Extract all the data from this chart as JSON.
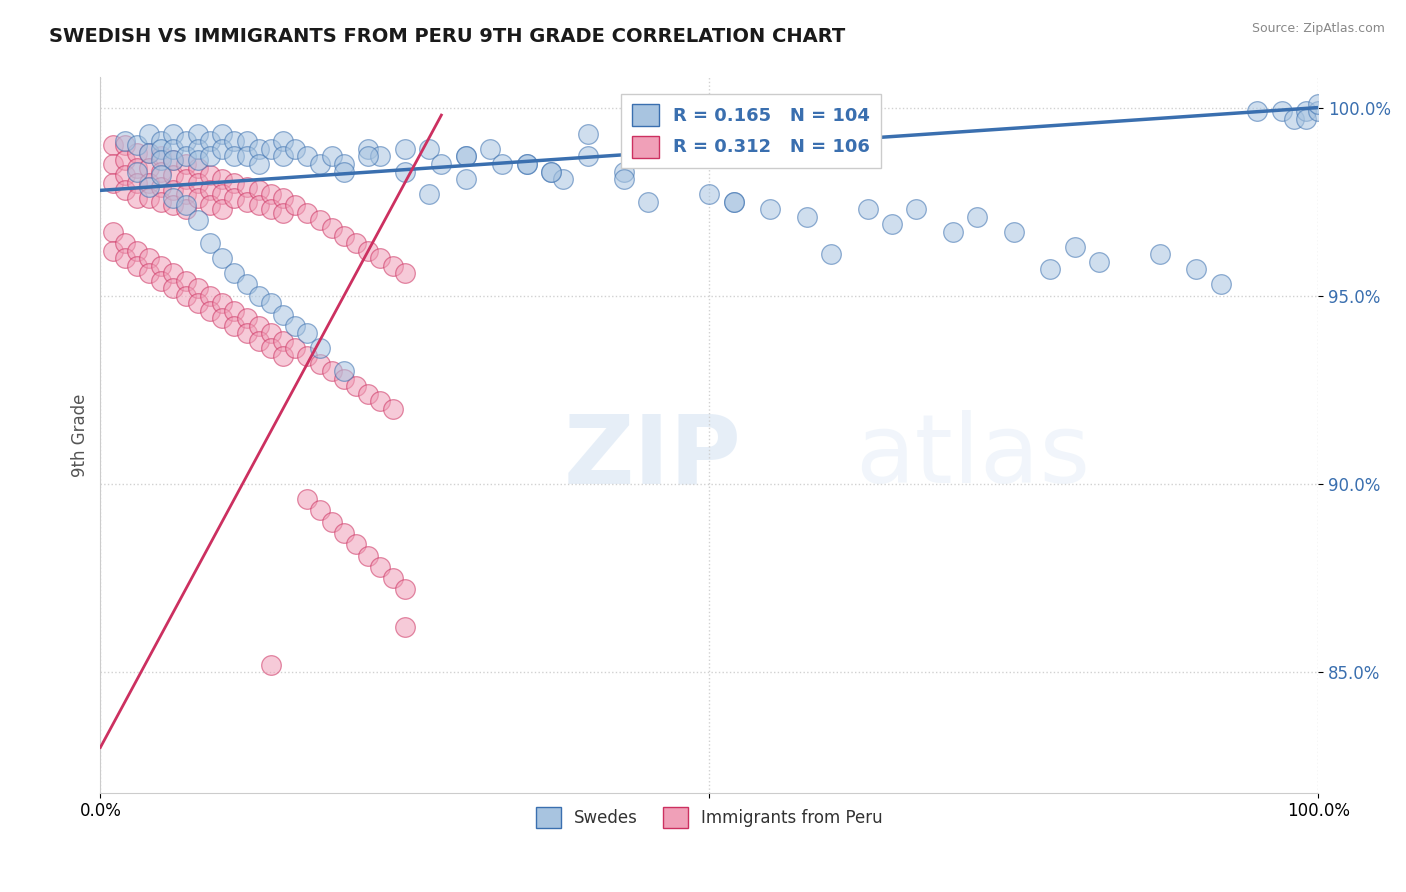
{
  "title": "SWEDISH VS IMMIGRANTS FROM PERU 9TH GRADE CORRELATION CHART",
  "source": "Source: ZipAtlas.com",
  "ylabel": "9th Grade",
  "xlim": [
    0.0,
    1.0
  ],
  "ylim": [
    0.818,
    1.008
  ],
  "yticks": [
    0.85,
    0.9,
    0.95,
    1.0
  ],
  "ytick_labels": [
    "85.0%",
    "90.0%",
    "95.0%",
    "100.0%"
  ],
  "swedes_R": 0.165,
  "swedes_N": 104,
  "peru_R": 0.312,
  "peru_N": 106,
  "swedes_color": "#a8c4e0",
  "peru_color": "#f0a0b8",
  "swedes_line_color": "#3a6faf",
  "peru_line_color": "#cc3060",
  "legend_text_color": "#3a6faf",
  "watermark_zip": "ZIP",
  "watermark_atlas": "atlas",
  "background_color": "#ffffff",
  "grid_color": "#cccccc",
  "swedes_x": [
    0.02,
    0.03,
    0.04,
    0.04,
    0.05,
    0.05,
    0.05,
    0.06,
    0.06,
    0.06,
    0.07,
    0.07,
    0.08,
    0.08,
    0.08,
    0.09,
    0.09,
    0.1,
    0.1,
    0.11,
    0.11,
    0.12,
    0.12,
    0.13,
    0.13,
    0.14,
    0.15,
    0.15,
    0.16,
    0.17,
    0.18,
    0.19,
    0.2,
    0.22,
    0.23,
    0.25,
    0.27,
    0.28,
    0.3,
    0.32,
    0.35,
    0.37,
    0.03,
    0.04,
    0.05,
    0.06,
    0.07,
    0.08,
    0.09,
    0.1,
    0.11,
    0.12,
    0.13,
    0.14,
    0.15,
    0.16,
    0.17,
    0.18,
    0.2,
    0.38,
    0.4,
    0.43,
    0.45,
    0.47,
    0.48,
    0.5,
    0.52,
    0.55,
    0.58,
    0.6,
    0.63,
    0.65,
    0.67,
    0.7,
    0.72,
    0.75,
    0.78,
    0.8,
    0.82,
    0.87,
    0.9,
    0.92,
    0.95,
    0.97,
    0.98,
    0.99,
    0.99,
    1.0,
    1.0,
    0.3,
    0.33,
    0.35,
    0.27,
    0.25,
    0.48,
    0.52,
    0.55,
    0.43,
    0.45,
    0.4,
    0.37,
    0.3,
    0.22,
    0.2
  ],
  "swedes_y": [
    0.991,
    0.99,
    0.993,
    0.988,
    0.991,
    0.989,
    0.986,
    0.993,
    0.989,
    0.986,
    0.991,
    0.987,
    0.993,
    0.989,
    0.986,
    0.991,
    0.987,
    0.993,
    0.989,
    0.991,
    0.987,
    0.991,
    0.987,
    0.989,
    0.985,
    0.989,
    0.991,
    0.987,
    0.989,
    0.987,
    0.985,
    0.987,
    0.985,
    0.989,
    0.987,
    0.983,
    0.989,
    0.985,
    0.987,
    0.989,
    0.985,
    0.983,
    0.983,
    0.979,
    0.982,
    0.976,
    0.974,
    0.97,
    0.964,
    0.96,
    0.956,
    0.953,
    0.95,
    0.948,
    0.945,
    0.942,
    0.94,
    0.936,
    0.93,
    0.981,
    0.987,
    0.983,
    0.975,
    0.989,
    0.99,
    0.977,
    0.975,
    0.973,
    0.971,
    0.961,
    0.973,
    0.969,
    0.973,
    0.967,
    0.971,
    0.967,
    0.957,
    0.963,
    0.959,
    0.961,
    0.957,
    0.953,
    0.999,
    0.999,
    0.997,
    0.999,
    0.997,
    0.999,
    1.001,
    0.987,
    0.985,
    0.985,
    0.977,
    0.989,
    0.991,
    0.975,
    0.993,
    0.981,
    0.987,
    0.993,
    0.983,
    0.981,
    0.987,
    0.983
  ],
  "peru_x": [
    0.01,
    0.01,
    0.01,
    0.02,
    0.02,
    0.02,
    0.02,
    0.03,
    0.03,
    0.03,
    0.03,
    0.04,
    0.04,
    0.04,
    0.04,
    0.05,
    0.05,
    0.05,
    0.05,
    0.06,
    0.06,
    0.06,
    0.06,
    0.07,
    0.07,
    0.07,
    0.07,
    0.08,
    0.08,
    0.08,
    0.09,
    0.09,
    0.09,
    0.1,
    0.1,
    0.1,
    0.11,
    0.11,
    0.12,
    0.12,
    0.13,
    0.13,
    0.14,
    0.14,
    0.15,
    0.15,
    0.16,
    0.17,
    0.18,
    0.19,
    0.2,
    0.21,
    0.22,
    0.23,
    0.24,
    0.25,
    0.01,
    0.01,
    0.02,
    0.02,
    0.03,
    0.03,
    0.04,
    0.04,
    0.05,
    0.05,
    0.06,
    0.06,
    0.07,
    0.07,
    0.08,
    0.08,
    0.09,
    0.09,
    0.1,
    0.1,
    0.11,
    0.11,
    0.12,
    0.12,
    0.13,
    0.13,
    0.14,
    0.14,
    0.15,
    0.15,
    0.16,
    0.17,
    0.18,
    0.19,
    0.2,
    0.21,
    0.22,
    0.23,
    0.24,
    0.14,
    0.25,
    0.17,
    0.18,
    0.19,
    0.2,
    0.21,
    0.22,
    0.23,
    0.24,
    0.25
  ],
  "peru_y": [
    0.99,
    0.985,
    0.98,
    0.99,
    0.986,
    0.982,
    0.978,
    0.988,
    0.984,
    0.98,
    0.976,
    0.988,
    0.984,
    0.98,
    0.976,
    0.987,
    0.983,
    0.979,
    0.975,
    0.986,
    0.982,
    0.978,
    0.974,
    0.985,
    0.981,
    0.977,
    0.973,
    0.984,
    0.98,
    0.976,
    0.982,
    0.978,
    0.974,
    0.981,
    0.977,
    0.973,
    0.98,
    0.976,
    0.979,
    0.975,
    0.978,
    0.974,
    0.977,
    0.973,
    0.976,
    0.972,
    0.974,
    0.972,
    0.97,
    0.968,
    0.966,
    0.964,
    0.962,
    0.96,
    0.958,
    0.956,
    0.967,
    0.962,
    0.964,
    0.96,
    0.962,
    0.958,
    0.96,
    0.956,
    0.958,
    0.954,
    0.956,
    0.952,
    0.954,
    0.95,
    0.952,
    0.948,
    0.95,
    0.946,
    0.948,
    0.944,
    0.946,
    0.942,
    0.944,
    0.94,
    0.942,
    0.938,
    0.94,
    0.936,
    0.938,
    0.934,
    0.936,
    0.934,
    0.932,
    0.93,
    0.928,
    0.926,
    0.924,
    0.922,
    0.92,
    0.852,
    0.862,
    0.896,
    0.893,
    0.89,
    0.887,
    0.884,
    0.881,
    0.878,
    0.875,
    0.872
  ]
}
